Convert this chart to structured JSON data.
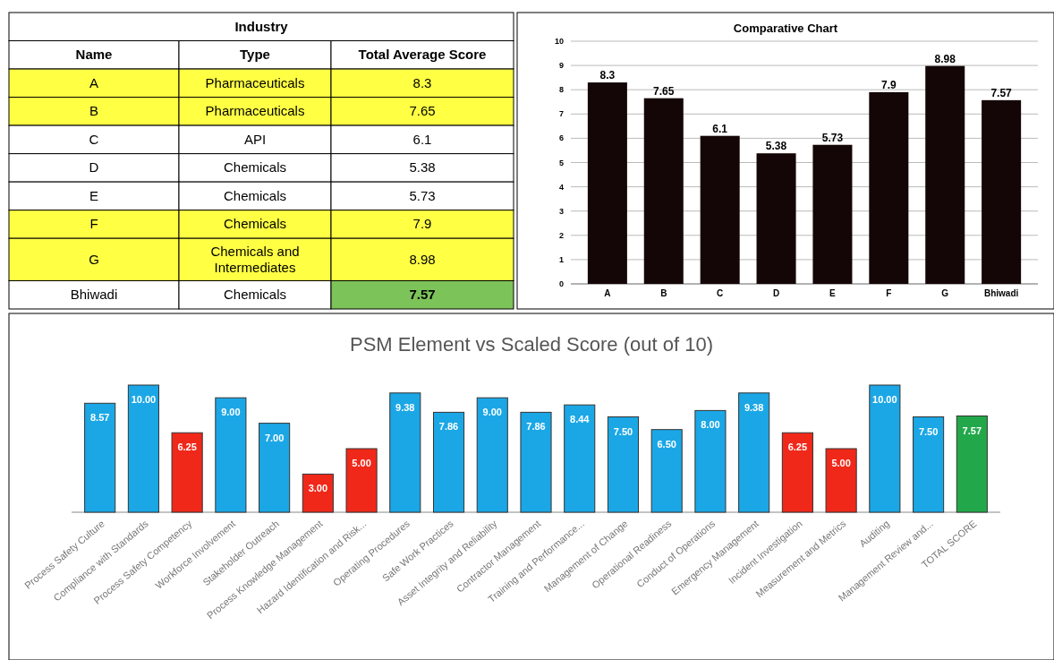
{
  "chart_data": [
    {
      "type": "other",
      "title": "Industry",
      "categories": [
        "Name",
        "Type",
        "Total Average Score"
      ],
      "cell_labels": [
        [
          "A",
          "Pharmaceuticals",
          "8.3"
        ],
        [
          "B",
          "Pharmaceuticals",
          "7.65"
        ],
        [
          "C",
          "API",
          "6.1"
        ],
        [
          "D",
          "Chemicals",
          "5.38"
        ],
        [
          "E",
          "Chemicals",
          "5.73"
        ],
        [
          "F",
          "Chemicals",
          "7.9"
        ],
        [
          "G",
          "Chemicals and Intermediates",
          "8.98"
        ],
        [
          "Bhiwadi",
          "Chemicals",
          "7.57"
        ]
      ],
      "colors": [
        [
          "#ffff44",
          "#ffff44",
          "#ffff44"
        ],
        [
          "#ffff44",
          "#ffff44",
          "#ffff44"
        ],
        [
          "#ffffff",
          "#ffffff",
          "#ffffff"
        ],
        [
          "#ffffff",
          "#ffffff",
          "#ffffff"
        ],
        [
          "#ffffff",
          "#ffffff",
          "#ffffff"
        ],
        [
          "#ffff44",
          "#ffff44",
          "#ffff44"
        ],
        [
          "#ffff44",
          "#ffff44",
          "#ffff44"
        ],
        [
          "#ffffff",
          "#ffffff",
          "#7cc35a"
        ]
      ]
    },
    {
      "type": "bar",
      "title": "Comparative Chart",
      "categories": [
        "A",
        "B",
        "C",
        "D",
        "E",
        "F",
        "G",
        "Bhiwadi"
      ],
      "values": [
        8.3,
        7.65,
        6.1,
        5.38,
        5.73,
        7.9,
        8.98,
        7.57
      ],
      "color": "#140606",
      "ylim": [
        0,
        10
      ],
      "yticks": [
        0,
        1,
        2,
        3,
        4,
        5,
        6,
        7,
        8,
        9,
        10
      ],
      "grid": "y",
      "data_labels": true
    },
    {
      "type": "bar",
      "title": "PSM Element vs Scaled Score (out of 10)",
      "categories": [
        "Process Safety Culture",
        "Compliance with Standards",
        "Process Safety Competency",
        "Workforce Involvement",
        "Stakeholder Outreach",
        "Process Knowledge Management",
        "Hazard Identification and Risk...",
        "Operating Procedures",
        "Safe Work Practices",
        "Asset Integrity and Reliability",
        "Contractor Management",
        "Training and Performance...",
        "Management of Change",
        "Operational Readiness",
        "Conduct of Operations",
        "Emergency Management",
        "Incident Investigation",
        "Measurement and Metrics",
        "Auditing",
        "Management Review and...",
        "TOTAL SCORE"
      ],
      "values": [
        8.57,
        10,
        6.25,
        9,
        7,
        3,
        5,
        9.38,
        7.86,
        9,
        7.86,
        8.44,
        7.5,
        6.5,
        8,
        9.38,
        6.25,
        5,
        10,
        7.5,
        7.57
      ],
      "value_labels": [
        "8.57",
        "10.00",
        "6.25",
        "9.00",
        "7.00",
        "3.00",
        "5.00",
        "9.38",
        "7.86",
        "9.00",
        "7.86",
        "8.44",
        "7.50",
        "6.50",
        "8.00",
        "9.38",
        "6.25",
        "5.00",
        "10.00",
        "7.50",
        "7.57"
      ],
      "colors": [
        "#1ba7e6",
        "#1ba7e6",
        "#f0281a",
        "#1ba7e6",
        "#1ba7e6",
        "#f0281a",
        "#f0281a",
        "#1ba7e6",
        "#1ba7e6",
        "#1ba7e6",
        "#1ba7e6",
        "#1ba7e6",
        "#1ba7e6",
        "#1ba7e6",
        "#1ba7e6",
        "#1ba7e6",
        "#f0281a",
        "#f0281a",
        "#1ba7e6",
        "#1ba7e6",
        "#22a84a"
      ],
      "ylim": [
        0,
        10
      ],
      "tick_labels": "x"
    }
  ]
}
